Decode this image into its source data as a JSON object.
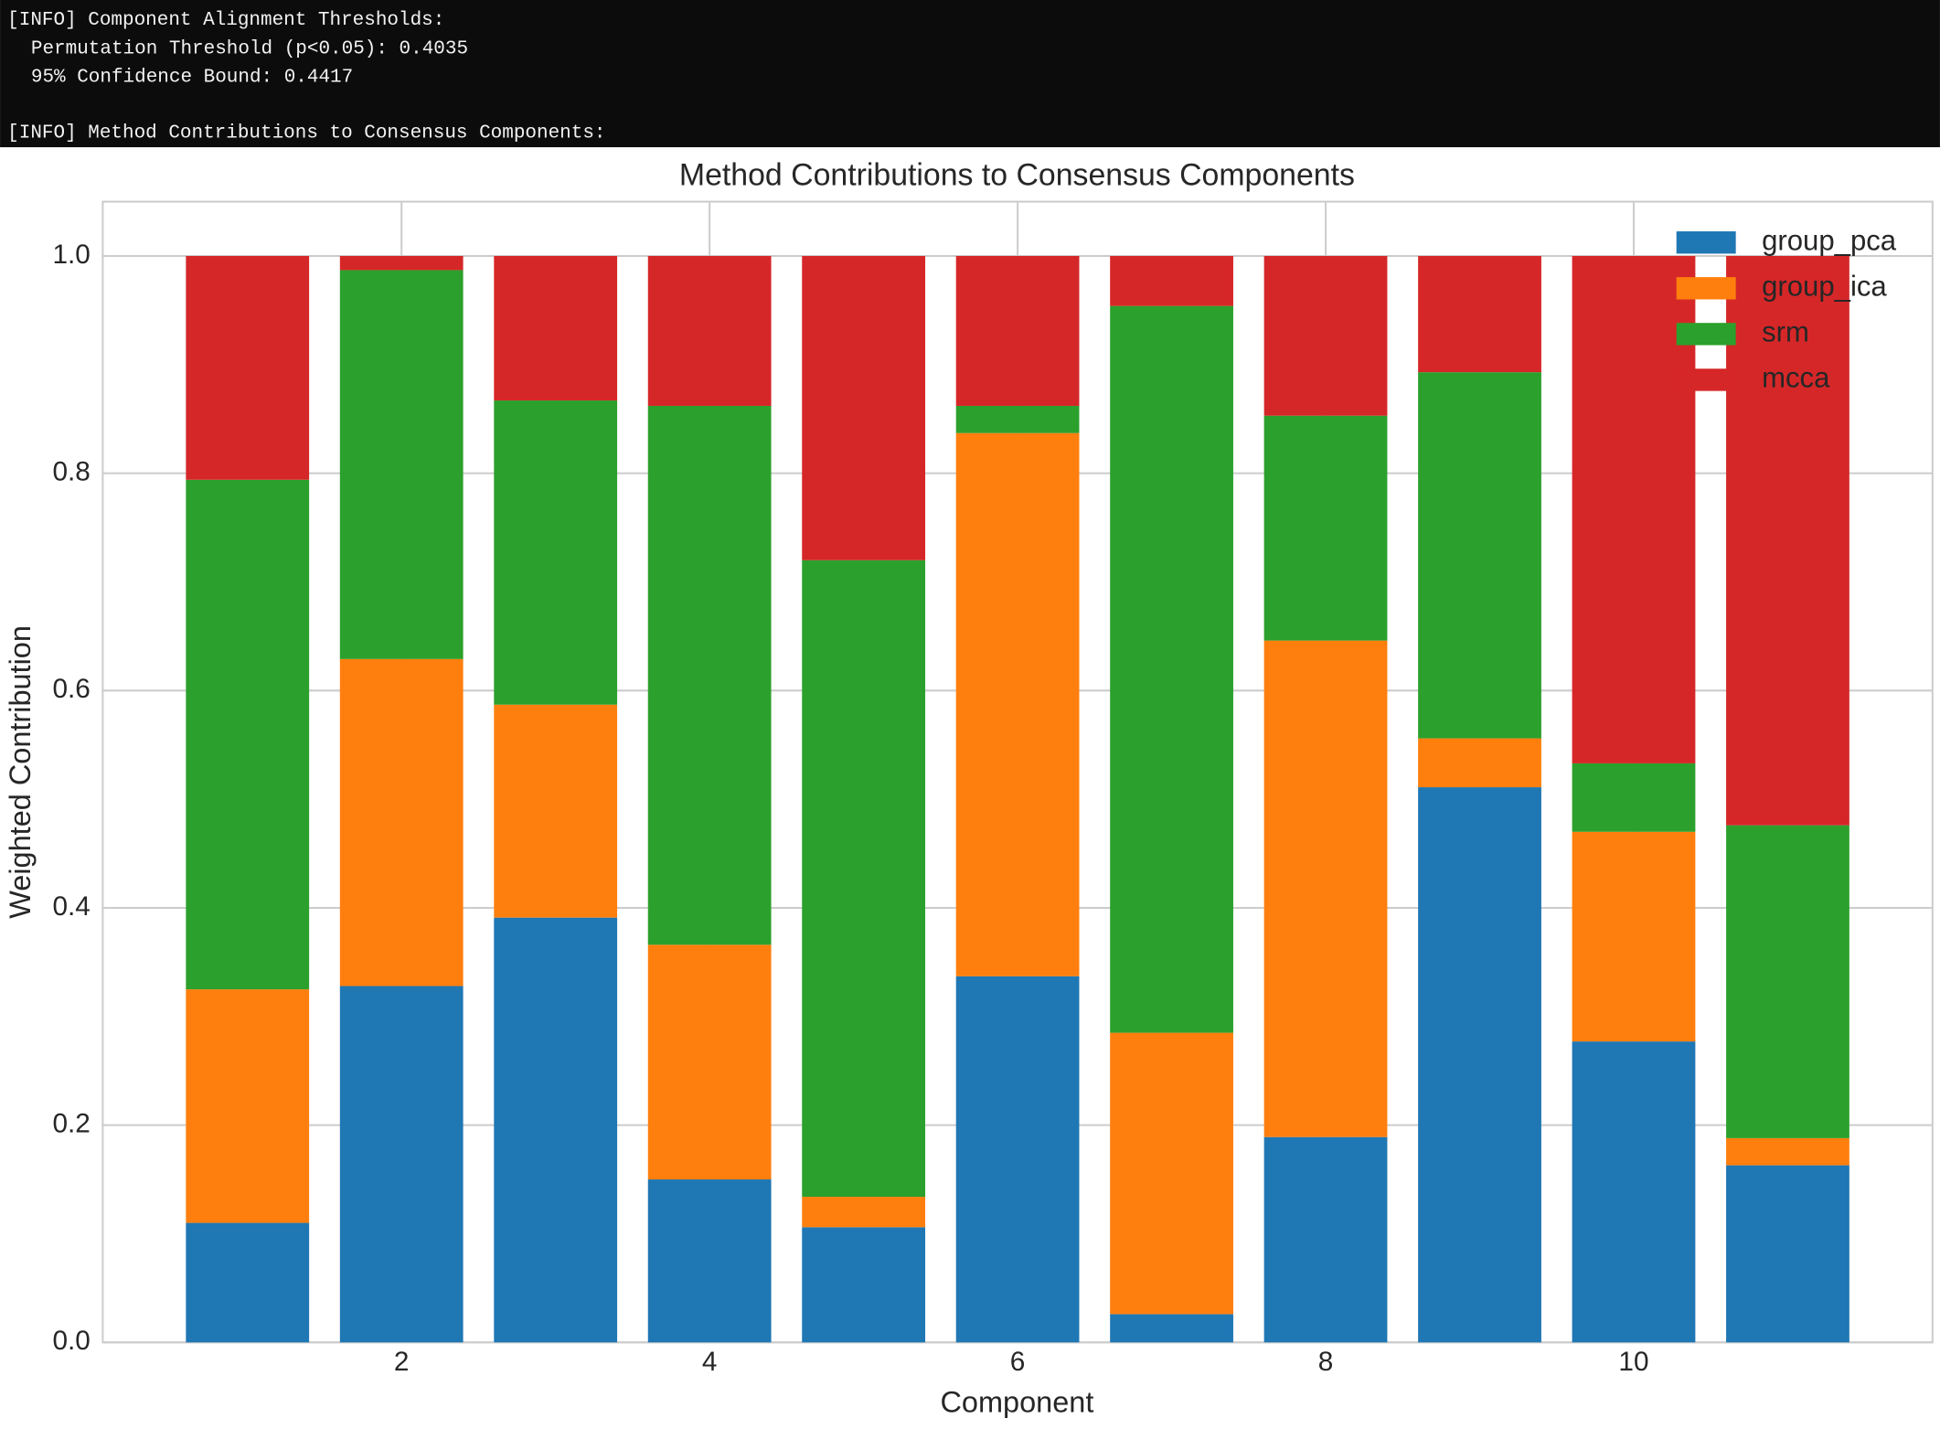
{
  "terminal": {
    "lines": [
      "[INFO] Component Alignment Thresholds:",
      "Permutation Threshold (p<0.05): 0.4035",
      "95% Confidence Bound: 0.4417",
      "[INFO] Method Contributions to Consensus Components:"
    ]
  },
  "chart_data": {
    "type": "stacked_bar",
    "title": "Method Contributions to Consensus Components",
    "x_label": "Component",
    "y_label": "Weighted Contribution",
    "x": [
      1,
      2,
      3,
      4,
      5,
      6,
      7,
      8,
      9,
      10,
      11
    ],
    "series": [
      {
        "name": "group_pca",
        "color": "#1f77b4",
        "values": [
          0.11,
          0.328,
          0.391,
          0.15,
          0.106,
          0.337,
          0.026,
          0.189,
          0.511,
          0.277,
          0.163
        ]
      },
      {
        "name": "group_ica",
        "color": "#ff7f0e",
        "values": [
          0.215,
          0.301,
          0.196,
          0.216,
          0.028,
          0.5,
          0.259,
          0.457,
          0.045,
          0.193,
          0.025
        ]
      },
      {
        "name": "srm",
        "color": "#2ca02c",
        "values": [
          0.469,
          0.358,
          0.28,
          0.496,
          0.586,
          0.025,
          0.669,
          0.207,
          0.337,
          0.063,
          0.288
        ]
      },
      {
        "name": "mcca",
        "color": "#d62728",
        "values": [
          0.206,
          0.013,
          0.133,
          0.138,
          0.28,
          0.138,
          0.046,
          0.147,
          0.107,
          0.467,
          0.524
        ]
      }
    ],
    "xlim": [
      0.06,
      11.94
    ],
    "ylim": [
      0,
      1.05
    ],
    "xticks": [
      2,
      4,
      6,
      8,
      10
    ],
    "yticks": [
      {
        "value": 0,
        "label": "0.0"
      },
      0.2,
      0.4,
      0.6,
      0.8,
      {
        "value": 1,
        "label": "1.0"
      }
    ],
    "grid": true,
    "legend": "upper right"
  }
}
